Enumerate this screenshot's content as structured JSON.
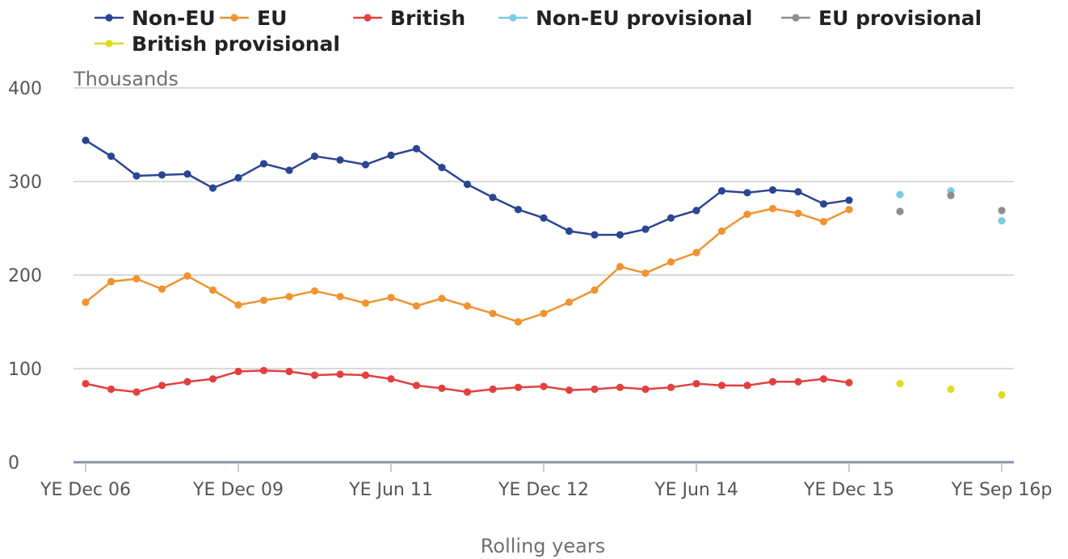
{
  "chart_data": {
    "type": "line",
    "title": "",
    "unit_label": "Thousands",
    "xlabel": "Rolling years",
    "ylabel": "",
    "ylim": [
      0,
      400
    ],
    "y_ticks": [
      0,
      100,
      200,
      300,
      400
    ],
    "x_tick_labels": [
      {
        "index": 0,
        "label": "YE Dec 06"
      },
      {
        "index": 6,
        "label": "YE Dec 09"
      },
      {
        "index": 12,
        "label": "YE Jun 11"
      },
      {
        "index": 18,
        "label": "YE Dec 12"
      },
      {
        "index": 24,
        "label": "YE Jun 14"
      },
      {
        "index": 30,
        "label": "YE Dec 15"
      },
      {
        "index": 36,
        "label": "YE Sep 16p"
      }
    ],
    "grid": true,
    "legend_position": "top-left",
    "series": [
      {
        "name": "Non-EU",
        "color": "#2a4592",
        "style": "line",
        "start_index": 0,
        "values": [
          344,
          327,
          306,
          307,
          308,
          293,
          304,
          319,
          312,
          327,
          323,
          318,
          328,
          335,
          315,
          297,
          283,
          270,
          261,
          247,
          243,
          243,
          249,
          261,
          269,
          290,
          288,
          291,
          289,
          276,
          280
        ]
      },
      {
        "name": "EU",
        "color": "#f09330",
        "style": "line",
        "start_index": 0,
        "values": [
          171,
          193,
          196,
          185,
          199,
          184,
          168,
          173,
          177,
          183,
          177,
          170,
          176,
          167,
          175,
          167,
          159,
          150,
          159,
          171,
          184,
          209,
          202,
          214,
          224,
          247,
          265,
          271,
          266,
          257,
          270
        ]
      },
      {
        "name": "British",
        "color": "#e2403f",
        "style": "line",
        "start_index": 0,
        "values": [
          84,
          78,
          75,
          82,
          86,
          89,
          97,
          98,
          97,
          93,
          94,
          93,
          89,
          82,
          79,
          75,
          78,
          80,
          81,
          77,
          78,
          80,
          78,
          80,
          84,
          82,
          82,
          86,
          86,
          89,
          85
        ]
      },
      {
        "name": "Non-EU provisional",
        "color": "#7ccbe3",
        "style": "points",
        "start_index": 32,
        "step": 2,
        "values": [
          286,
          290,
          258
        ]
      },
      {
        "name": "EU provisional",
        "color": "#8e8e8e",
        "style": "points",
        "start_index": 32,
        "step": 2,
        "values": [
          268,
          285,
          269
        ]
      },
      {
        "name": "British provisional",
        "color": "#e0db1f",
        "style": "points",
        "start_index": 32,
        "step": 2,
        "values": [
          84,
          78,
          72
        ]
      }
    ]
  }
}
